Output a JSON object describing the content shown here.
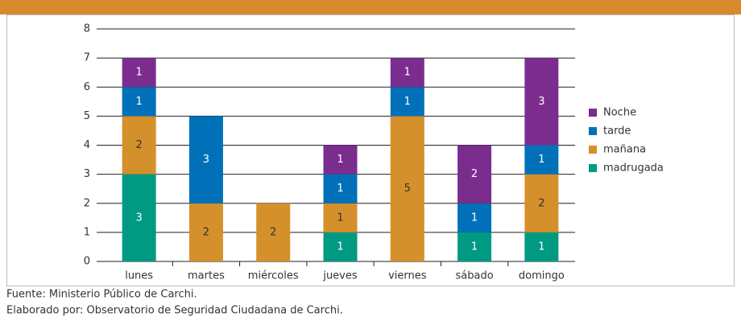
{
  "chart_data": {
    "type": "stacked-bar",
    "categories": [
      "lunes",
      "martes",
      "miércoles",
      "jueves",
      "viernes",
      "sábado",
      "domingo"
    ],
    "series": [
      {
        "name": "madrugada",
        "color": "#009a82",
        "values": [
          3,
          null,
          null,
          1,
          null,
          1,
          1
        ]
      },
      {
        "name": "mañana",
        "color": "#d4902a",
        "values": [
          2,
          2,
          2,
          1,
          5,
          null,
          2
        ]
      },
      {
        "name": "tarde",
        "color": "#0071b8",
        "values": [
          1,
          3,
          null,
          1,
          1,
          1,
          1
        ]
      },
      {
        "name": "Noche",
        "color": "#7b2d8e",
        "values": [
          1,
          null,
          null,
          1,
          1,
          2,
          3
        ]
      }
    ],
    "ylim": [
      0,
      8
    ],
    "yticks": [
      0,
      1,
      2,
      3,
      4,
      5,
      6,
      7,
      8
    ],
    "grid": true,
    "legend": "right",
    "notes": [
      "Fuente: Ministerio Público de Carchi.",
      "Elaborado por: Observatorio de Seguridad Ciudadana de Carchi."
    ]
  }
}
